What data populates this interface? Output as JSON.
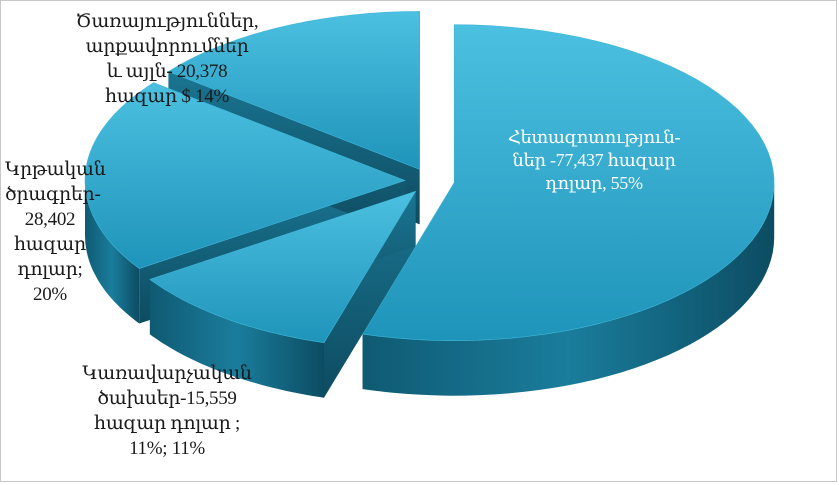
{
  "chart_data": {
    "type": "pie",
    "variant": "3d-exploded",
    "title": "",
    "unit": "հազար դոլար",
    "slices": [
      {
        "label": "Հետազոտություն-\nներ -77,437  հազար\nդոլար, 55%",
        "value": 77437,
        "percent": 55,
        "color": "#2aa4c8"
      },
      {
        "label": "Կառավարչական\nծախսեր-15,559\nհազար դոլար ;\n11%; 11%",
        "value": 15559,
        "percent": 11,
        "color": "#2aa4c8"
      },
      {
        "label": "Կրթական\nծրագրեր-\n28,402\nհազար\nդոլար;\n20%",
        "value": 28402,
        "percent": 20,
        "color": "#2aa4c8"
      },
      {
        "label": "Ծառայություններ,\nարքավորումներ\nև այլն- 20,378\nհազար $ 14%",
        "value": 20378,
        "percent": 14,
        "color": "#2aa4c8"
      }
    ]
  }
}
